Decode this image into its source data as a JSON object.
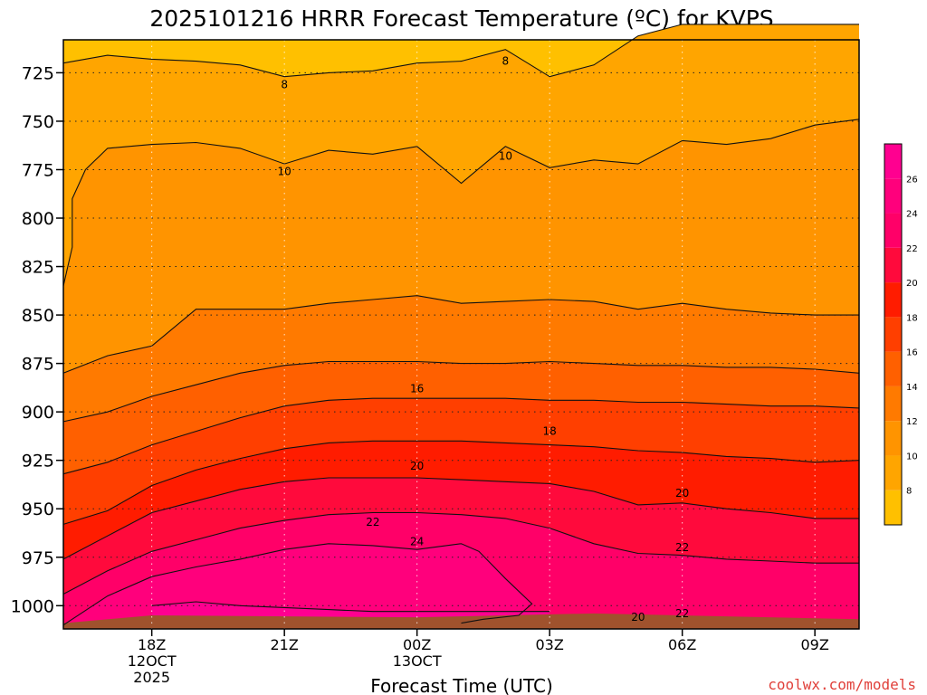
{
  "chart_data": {
    "type": "contour",
    "title": "2025101216 HRRR Forecast Temperature (ºC) for KVPS",
    "xlabel": "Forecast Time (UTC)",
    "ylabel": "",
    "credit": "coolwx.com/models",
    "x_range": [
      16,
      34
    ],
    "y_range": [
      708,
      1012
    ],
    "y_ticks": [
      725,
      750,
      775,
      800,
      825,
      850,
      875,
      900,
      925,
      950,
      975,
      1000
    ],
    "x_ticks": [
      {
        "hour": 18,
        "lines": [
          "18Z",
          "12OCT",
          "2025"
        ]
      },
      {
        "hour": 21,
        "lines": [
          "21Z"
        ]
      },
      {
        "hour": 24,
        "lines": [
          "00Z",
          "13OCT"
        ]
      },
      {
        "hour": 27,
        "lines": [
          "03Z"
        ]
      },
      {
        "hour": 30,
        "lines": [
          "06Z"
        ]
      },
      {
        "hour": 33,
        "lines": [
          "09Z"
        ]
      }
    ],
    "colorbar_ticks": [
      8,
      10,
      12,
      14,
      16,
      18,
      20,
      22,
      24,
      26
    ],
    "bands": [
      {
        "min": 6,
        "max": 8,
        "color": "#ffc000"
      },
      {
        "min": 8,
        "max": 10,
        "color": "#ffa500"
      },
      {
        "min": 10,
        "max": 12,
        "color": "#ff9400"
      },
      {
        "min": 12,
        "max": 14,
        "color": "#ff7a00"
      },
      {
        "min": 14,
        "max": 16,
        "color": "#ff6000"
      },
      {
        "min": 16,
        "max": 18,
        "color": "#ff3f00"
      },
      {
        "min": 18,
        "max": 20,
        "color": "#ff1c00"
      },
      {
        "min": 20,
        "max": 22,
        "color": "#ff0a3c"
      },
      {
        "min": 22,
        "max": 24,
        "color": "#ff0068"
      },
      {
        "min": 24,
        "max": 26,
        "color": "#ff007c"
      },
      {
        "min": 26,
        "max": 28,
        "color": "#ff0090"
      }
    ],
    "contours": [
      {
        "level": 8,
        "points": [
          [
            16,
            720
          ],
          [
            17,
            716
          ],
          [
            18,
            718
          ],
          [
            19,
            719
          ],
          [
            20,
            721
          ],
          [
            21,
            727
          ],
          [
            22,
            725
          ],
          [
            23,
            724
          ],
          [
            24,
            720
          ],
          [
            25,
            719
          ],
          [
            26,
            713
          ],
          [
            27,
            727
          ],
          [
            28,
            721
          ],
          [
            29,
            706
          ],
          [
            30,
            700
          ],
          [
            31,
            700
          ],
          [
            32,
            700
          ],
          [
            33,
            700
          ],
          [
            34,
            700
          ]
        ]
      },
      {
        "level": 10,
        "points": [
          [
            16,
            835
          ],
          [
            16.2,
            815
          ],
          [
            16.2,
            800
          ],
          [
            16.2,
            790
          ],
          [
            16.5,
            775
          ],
          [
            17,
            764
          ],
          [
            18,
            762
          ],
          [
            19,
            761
          ],
          [
            20,
            764
          ],
          [
            21,
            772
          ],
          [
            22,
            765
          ],
          [
            23,
            767
          ],
          [
            24,
            763
          ],
          [
            25,
            782
          ],
          [
            26,
            763
          ],
          [
            27,
            774
          ],
          [
            28,
            770
          ],
          [
            29,
            772
          ],
          [
            30,
            760
          ],
          [
            31,
            762
          ],
          [
            32,
            759
          ],
          [
            33,
            752
          ],
          [
            34,
            749
          ]
        ]
      },
      {
        "level": 12,
        "points": [
          [
            16,
            880
          ],
          [
            17,
            871
          ],
          [
            18,
            866
          ],
          [
            19,
            847
          ],
          [
            20,
            847
          ],
          [
            21,
            847
          ],
          [
            22,
            844
          ],
          [
            23,
            842
          ],
          [
            24,
            840
          ],
          [
            25,
            844
          ],
          [
            26,
            843
          ],
          [
            27,
            842
          ],
          [
            28,
            843
          ],
          [
            29,
            847
          ],
          [
            30,
            844
          ],
          [
            31,
            847
          ],
          [
            32,
            849
          ],
          [
            33,
            850
          ],
          [
            34,
            850
          ]
        ]
      },
      {
        "level": 14,
        "points": [
          [
            16,
            905
          ],
          [
            17,
            900
          ],
          [
            18,
            892
          ],
          [
            19,
            886
          ],
          [
            20,
            880
          ],
          [
            21,
            876
          ],
          [
            22,
            874
          ],
          [
            23,
            874
          ],
          [
            24,
            874
          ],
          [
            25,
            875
          ],
          [
            26,
            875
          ],
          [
            27,
            874
          ],
          [
            28,
            875
          ],
          [
            29,
            876
          ],
          [
            30,
            876
          ],
          [
            31,
            877
          ],
          [
            32,
            877
          ],
          [
            33,
            878
          ],
          [
            34,
            880
          ]
        ]
      },
      {
        "level": 16,
        "points": [
          [
            16,
            932
          ],
          [
            17,
            926
          ],
          [
            18,
            917
          ],
          [
            19,
            910
          ],
          [
            20,
            903
          ],
          [
            21,
            897
          ],
          [
            22,
            894
          ],
          [
            23,
            893
          ],
          [
            24,
            893
          ],
          [
            25,
            893
          ],
          [
            26,
            893
          ],
          [
            27,
            894
          ],
          [
            28,
            894
          ],
          [
            29,
            895
          ],
          [
            30,
            895
          ],
          [
            31,
            896
          ],
          [
            32,
            897
          ],
          [
            33,
            897
          ],
          [
            34,
            898
          ]
        ]
      },
      {
        "level": 18,
        "points": [
          [
            16,
            958
          ],
          [
            17,
            951
          ],
          [
            18,
            938
          ],
          [
            19,
            930
          ],
          [
            20,
            924
          ],
          [
            21,
            919
          ],
          [
            22,
            916
          ],
          [
            23,
            915
          ],
          [
            24,
            915
          ],
          [
            25,
            915
          ],
          [
            26,
            916
          ],
          [
            27,
            917
          ],
          [
            28,
            918
          ],
          [
            29,
            920
          ],
          [
            30,
            921
          ],
          [
            31,
            923
          ],
          [
            32,
            924
          ],
          [
            33,
            926
          ],
          [
            34,
            925
          ]
        ]
      },
      {
        "level": 20,
        "points": [
          [
            16,
            976
          ],
          [
            17,
            964
          ],
          [
            18,
            952
          ],
          [
            19,
            946
          ],
          [
            20,
            940
          ],
          [
            21,
            936
          ],
          [
            22,
            934
          ],
          [
            23,
            934
          ],
          [
            24,
            934
          ],
          [
            25,
            935
          ],
          [
            26,
            936
          ],
          [
            27,
            937
          ],
          [
            28,
            941
          ],
          [
            29,
            948
          ],
          [
            30,
            947
          ],
          [
            31,
            950
          ],
          [
            32,
            952
          ],
          [
            33,
            955
          ],
          [
            34,
            955
          ]
        ]
      },
      {
        "level": 22,
        "points": [
          [
            16,
            994
          ],
          [
            17,
            982
          ],
          [
            18,
            972
          ],
          [
            19,
            966
          ],
          [
            20,
            960
          ],
          [
            21,
            956
          ],
          [
            22,
            953
          ],
          [
            23,
            952
          ],
          [
            24,
            952
          ],
          [
            25,
            953
          ],
          [
            26,
            955
          ],
          [
            27,
            960
          ],
          [
            28,
            968
          ],
          [
            29,
            973
          ],
          [
            30,
            974
          ],
          [
            31,
            976
          ],
          [
            32,
            977
          ],
          [
            33,
            978
          ],
          [
            34,
            978
          ]
        ]
      },
      {
        "level": 24,
        "points": [
          [
            16,
            1010
          ],
          [
            17,
            995
          ],
          [
            18,
            985
          ],
          [
            19,
            980
          ],
          [
            20,
            976
          ],
          [
            21,
            971
          ],
          [
            22,
            968
          ],
          [
            23,
            969
          ],
          [
            24,
            971
          ],
          [
            25,
            968
          ],
          [
            25.4,
            972
          ],
          [
            26,
            986
          ],
          [
            26.6,
            999
          ],
          [
            26.3,
            1005
          ],
          [
            25.5,
            1007
          ],
          [
            25,
            1009
          ]
        ]
      },
      {
        "level": 26,
        "points": [
          [
            18,
            1000
          ],
          [
            19,
            998
          ],
          [
            20,
            1000
          ],
          [
            21,
            1001
          ],
          [
            22,
            1002
          ],
          [
            23,
            1003
          ],
          [
            24,
            1003
          ],
          [
            25,
            1003
          ],
          [
            26,
            1003
          ],
          [
            27,
            1003
          ]
        ]
      }
    ],
    "contour_labels": [
      {
        "hour": 21,
        "p": 731,
        "text": "8"
      },
      {
        "hour": 26,
        "p": 719,
        "text": "8"
      },
      {
        "hour": 21,
        "p": 776,
        "text": "10"
      },
      {
        "hour": 26,
        "p": 768,
        "text": "10"
      },
      {
        "hour": 24,
        "p": 888,
        "text": "16"
      },
      {
        "hour": 27,
        "p": 910,
        "text": "18"
      },
      {
        "hour": 24,
        "p": 928,
        "text": "20"
      },
      {
        "hour": 30,
        "p": 942,
        "text": "20"
      },
      {
        "hour": 23,
        "p": 957,
        "text": "22"
      },
      {
        "hour": 30,
        "p": 970,
        "text": "22"
      },
      {
        "hour": 24,
        "p": 967,
        "text": "24"
      },
      {
        "hour": 30,
        "p": 1004,
        "text": "22"
      },
      {
        "hour": 29,
        "p": 1006,
        "text": "20"
      }
    ]
  }
}
